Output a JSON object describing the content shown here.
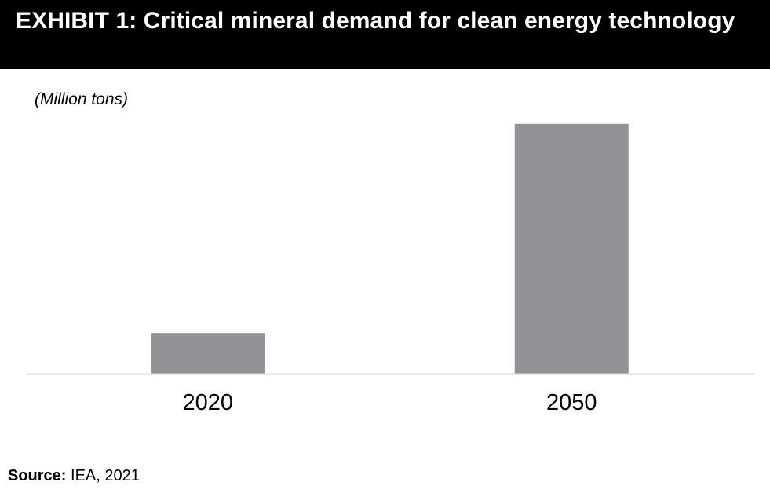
{
  "header": {
    "title": "EXHIBIT 1: Critical mineral demand for clean energy technology"
  },
  "chart_data": {
    "type": "bar",
    "categories": [
      "2020",
      "2050"
    ],
    "values": [
      7,
      43
    ],
    "ylabel": "(Million tons)",
    "ylim": [
      0,
      45
    ],
    "bar_color": "#939297",
    "axis_color": "#d9d9d9",
    "grid": false
  },
  "footer": {
    "source_key": "Source:",
    "source_value": " IEA, 2021"
  }
}
